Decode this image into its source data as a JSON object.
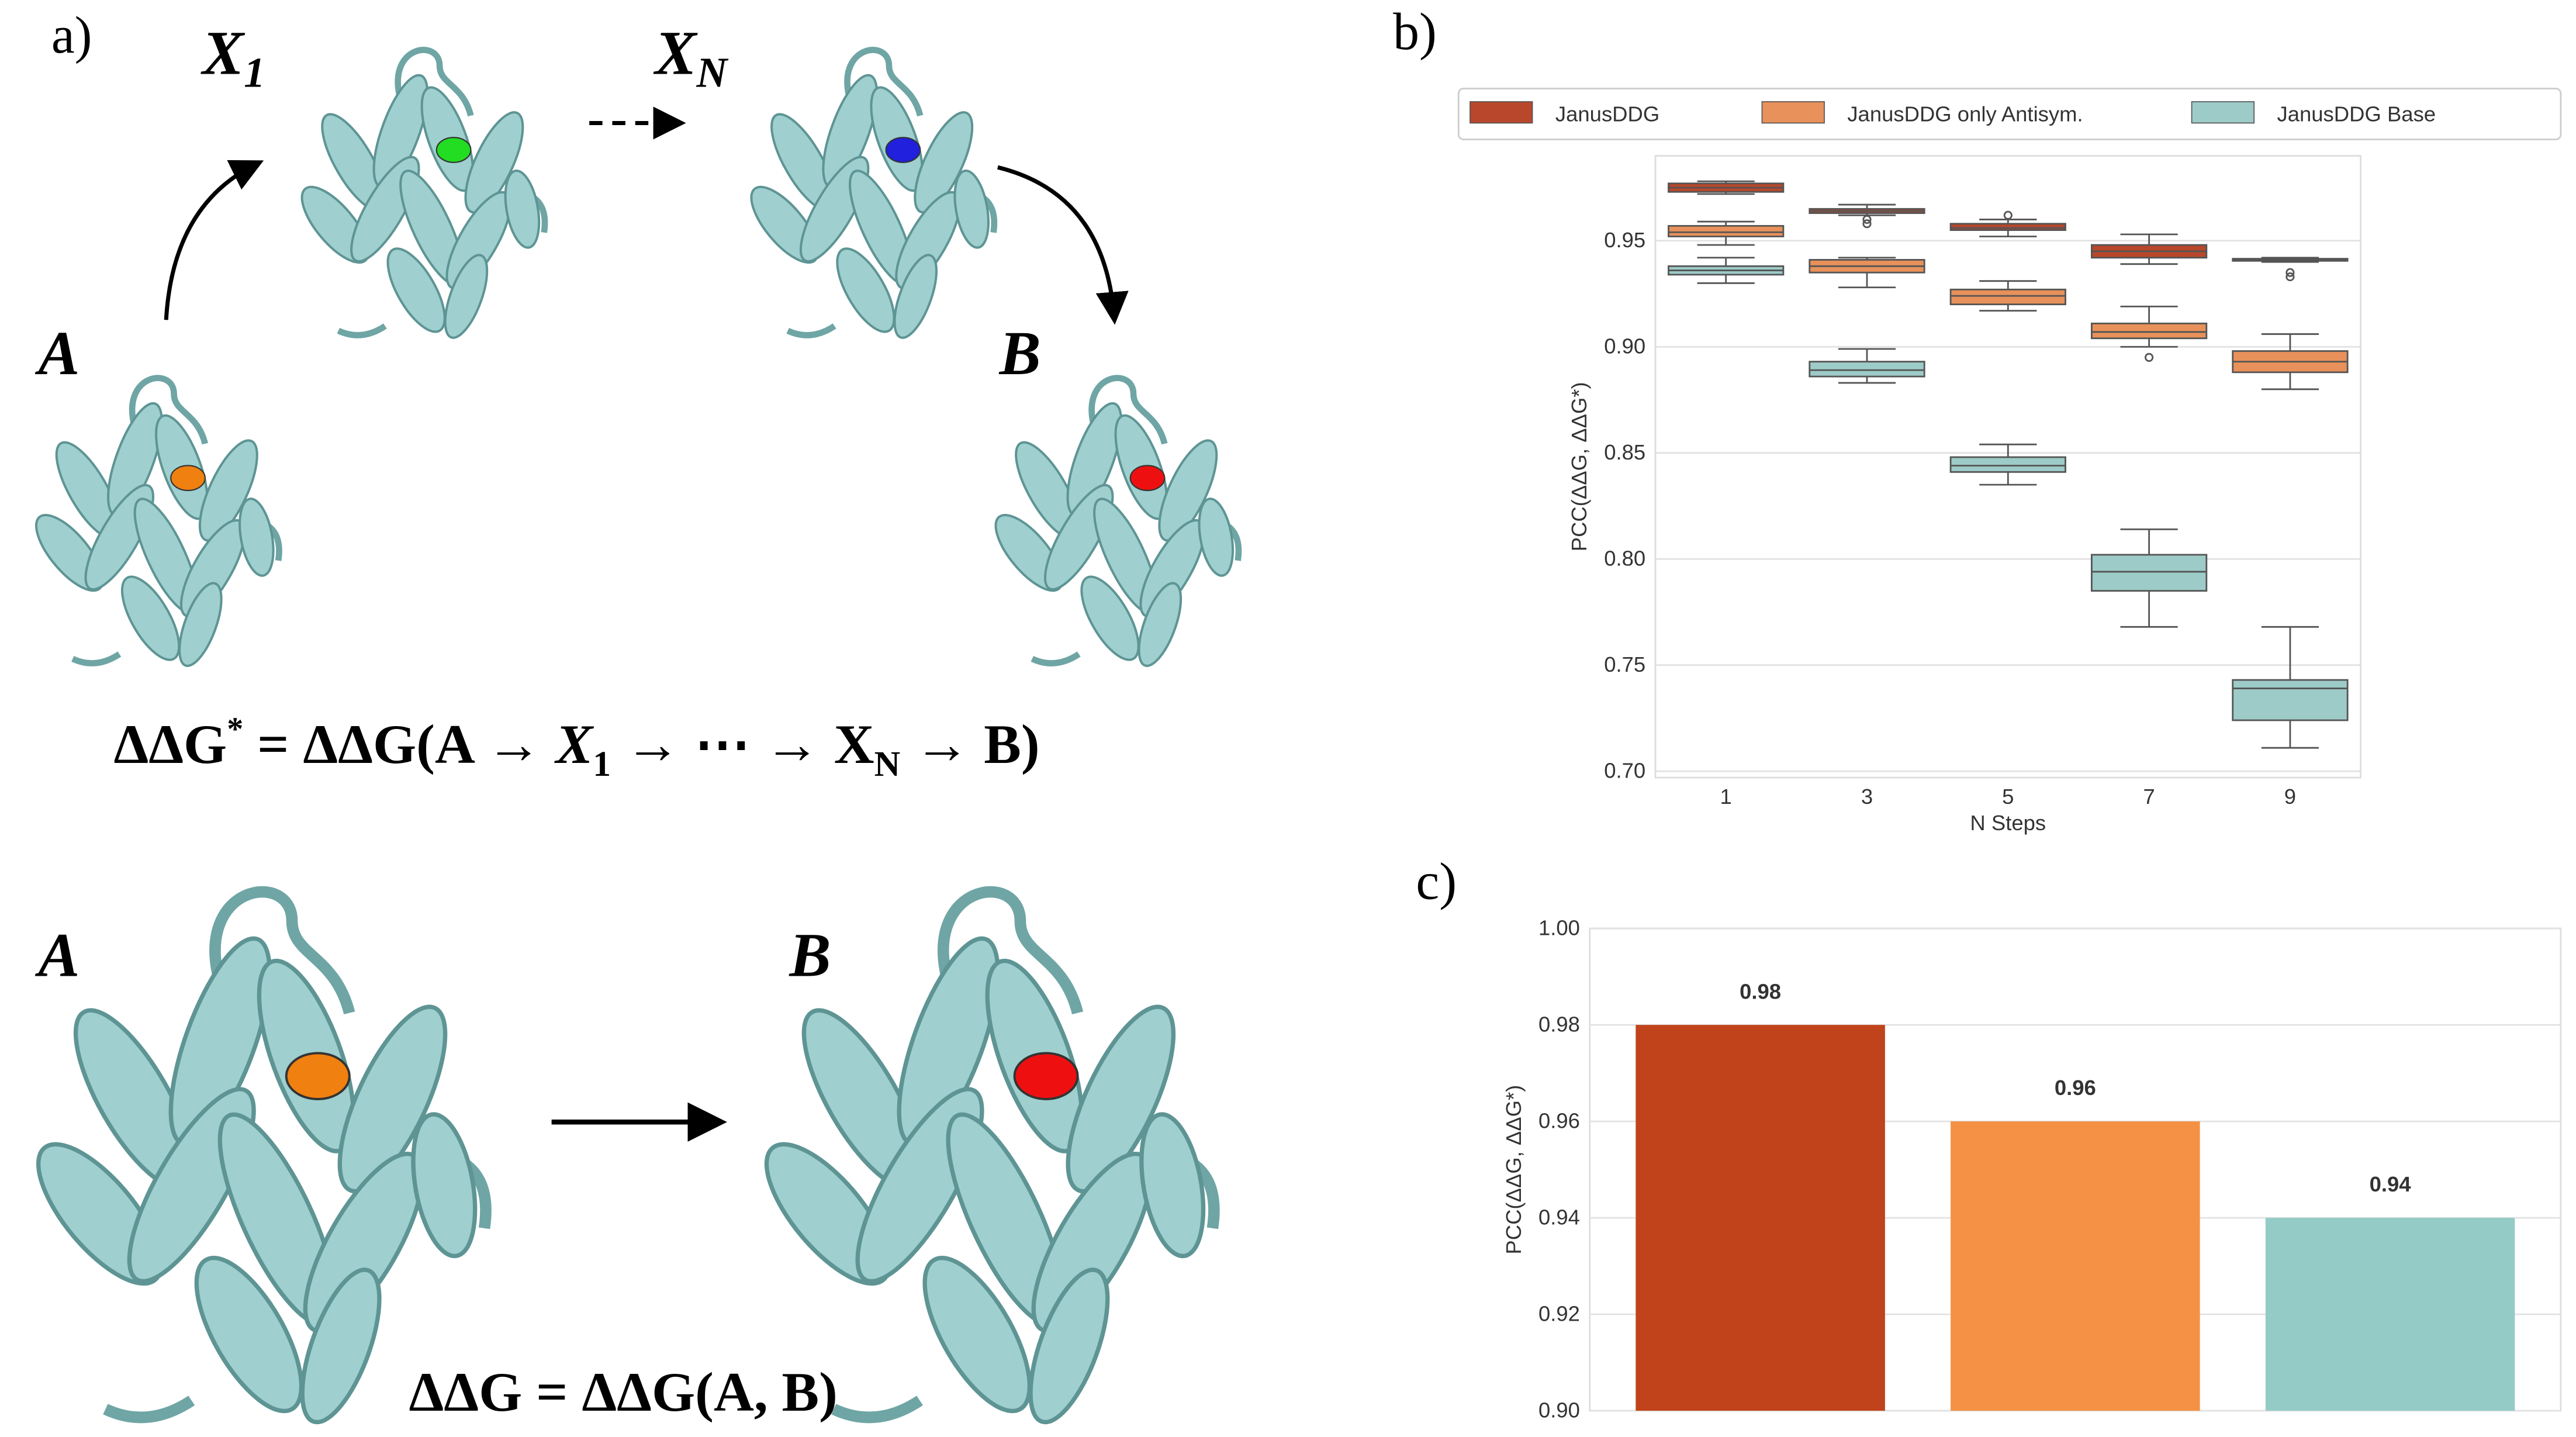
{
  "panel_a": {
    "label": "a)",
    "top": {
      "start": "A",
      "step_1": [
        "X",
        "1"
      ],
      "step_n": [
        "X",
        "N"
      ],
      "end": "B",
      "equation": [
        "ΔΔG",
        "*",
        " =  ΔΔG(A → ",
        "X",
        "1",
        " → ⋯ → ",
        "X",
        "N",
        " → B)"
      ]
    },
    "bottom": {
      "start": "A",
      "end": "B",
      "equation": [
        "ΔΔG =  ΔΔG(A, B)"
      ]
    }
  },
  "chart_data": [
    {
      "type": "box",
      "panel_label": "b)",
      "xlabel": "N Steps",
      "ylabel": "PCC(ΔΔG, ΔΔG*)",
      "x": [
        1,
        3,
        5,
        7,
        9
      ],
      "xlim": [
        0,
        10
      ],
      "xticks": [
        1,
        3,
        5,
        7,
        9
      ],
      "ylim": [
        0.697,
        0.99
      ],
      "yticks": [
        {
          "value": 0.7,
          "label": "0.70"
        },
        0.75,
        {
          "value": 0.8,
          "label": "0.80"
        },
        0.85,
        {
          "value": 0.9,
          "label": "0.90"
        },
        0.95
      ],
      "grid": true,
      "legend": "top",
      "series": [
        {
          "name": "JanusDDG",
          "color": "#b9472b",
          "whislo": [
            0.972,
            0.962,
            0.952,
            0.939,
            0.94
          ],
          "q1": [
            0.973,
            0.963,
            0.955,
            0.942,
            0.9405
          ],
          "med": [
            0.975,
            0.964,
            0.956,
            0.945,
            0.941
          ],
          "q3": [
            0.977,
            0.965,
            0.958,
            0.948,
            0.9415
          ],
          "whishi": [
            0.978,
            0.967,
            0.96,
            0.953,
            0.942
          ],
          "outliers": [
            [],
            [
              0.96,
              0.958
            ],
            [
              0.962
            ],
            [],
            [
              0.935,
              0.933
            ]
          ]
        },
        {
          "name": "JanusDDG only Antisym.",
          "color": "#e8915a",
          "whislo": [
            0.948,
            0.928,
            0.917,
            0.9,
            0.88
          ],
          "q1": [
            0.952,
            0.935,
            0.92,
            0.904,
            0.888
          ],
          "med": [
            0.954,
            0.938,
            0.924,
            0.907,
            0.893
          ],
          "q3": [
            0.957,
            0.941,
            0.927,
            0.911,
            0.898
          ],
          "whishi": [
            0.959,
            0.942,
            0.931,
            0.919,
            0.906
          ],
          "outliers": [
            [],
            [],
            [],
            [
              0.895
            ],
            []
          ]
        },
        {
          "name": "JanusDDG Base",
          "color": "#9dcbc8",
          "whislo": [
            0.93,
            0.883,
            0.835,
            0.768,
            0.711
          ],
          "q1": [
            0.934,
            0.886,
            0.841,
            0.785,
            0.724
          ],
          "med": [
            0.936,
            0.889,
            0.844,
            0.794,
            0.739
          ],
          "q3": [
            0.938,
            0.893,
            0.848,
            0.802,
            0.743
          ],
          "whishi": [
            0.942,
            0.899,
            0.854,
            0.814,
            0.768
          ],
          "outliers": [
            [],
            [],
            [],
            [],
            []
          ]
        }
      ]
    },
    {
      "type": "bar",
      "panel_label": "c)",
      "ylabel": "PCC(ΔΔG, ΔΔG*)",
      "categories": [
        null,
        null,
        null
      ],
      "values": [
        0.98,
        0.96,
        0.94
      ],
      "colors": [
        "#c0431b",
        "#f59145",
        "#94cbc7"
      ],
      "ylim": [
        0.9,
        1.0
      ],
      "yticks": [
        {
          "value": 0.9,
          "label": "0.90"
        },
        0.92,
        0.94,
        0.96,
        0.98,
        {
          "value": 1.0,
          "label": "1.00"
        }
      ],
      "grid": true
    }
  ]
}
